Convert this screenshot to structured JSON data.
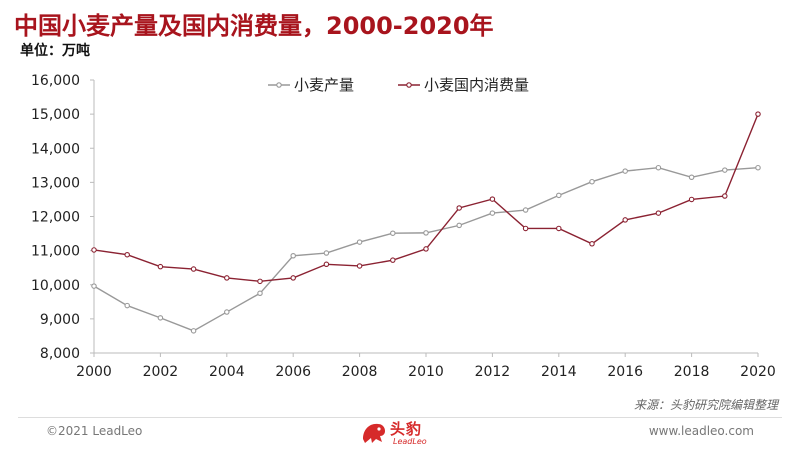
{
  "header": {
    "title": "中国小麦产量及国内消费量，2000-2020年",
    "unit": "单位：万吨"
  },
  "chart_data": {
    "type": "line",
    "x": [
      2000,
      2001,
      2002,
      2003,
      2004,
      2005,
      2006,
      2007,
      2008,
      2009,
      2010,
      2011,
      2012,
      2013,
      2014,
      2015,
      2016,
      2017,
      2018,
      2019,
      2020
    ],
    "x_tick_labels": [
      "2000",
      "2002",
      "2004",
      "2006",
      "2008",
      "2010",
      "2012",
      "2014",
      "2016",
      "2018",
      "2020"
    ],
    "y_tick_labels": [
      "8,000",
      "9,000",
      "10,000",
      "11,000",
      "12,000",
      "13,000",
      "14,000",
      "15,000",
      "16,000"
    ],
    "ylim": [
      8000,
      16000
    ],
    "grid": false,
    "legend_position": "top-center",
    "series": [
      {
        "name": "小麦产量",
        "color": "#999999",
        "values": [
          9960,
          9390,
          9030,
          8650,
          9200,
          9750,
          10850,
          10930,
          11250,
          11510,
          11520,
          11740,
          12100,
          12190,
          12620,
          13020,
          13330,
          13430,
          13150,
          13360,
          13430
        ]
      },
      {
        "name": "小麦国内消费量",
        "color": "#8b2232",
        "values": [
          11020,
          10880,
          10530,
          10460,
          10200,
          10100,
          10200,
          10600,
          10550,
          10720,
          11050,
          12250,
          12510,
          11650,
          11650,
          11200,
          11900,
          12100,
          12500,
          12600,
          15000
        ]
      }
    ]
  },
  "footer": {
    "source": "来源：头豹研究院编辑整理",
    "copyright": "©2021 LeadLeo",
    "website": "www.leadleo.com",
    "logo_text": "头豹",
    "logo_subtext": "LeadLeo",
    "logo_color": "#d62a2a"
  }
}
